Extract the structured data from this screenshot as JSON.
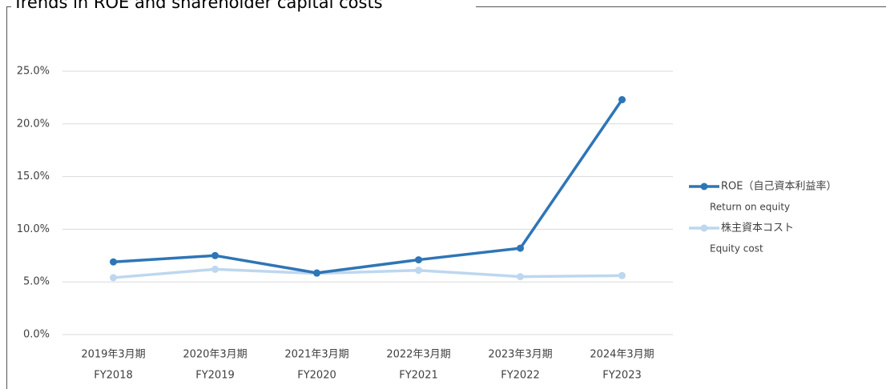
{
  "chart_data": {
    "type": "line",
    "title": "Trends in ROE and shareholder capital costs",
    "categories": [
      [
        "2019年3月期",
        "FY2018"
      ],
      [
        "2020年3月期",
        "FY2019"
      ],
      [
        "2021年3月期",
        "FY2020"
      ],
      [
        "2022年3月期",
        "FY2021"
      ],
      [
        "2023年3月期",
        "FY2022"
      ],
      [
        "2024年3月期",
        "FY2023"
      ]
    ],
    "series": [
      {
        "name": [
          "ROE（自己資本利益率）",
          "Return on equity"
        ],
        "color": "#2e75b6",
        "values": [
          6.9,
          7.5,
          5.85,
          7.1,
          8.2,
          22.3
        ]
      },
      {
        "name": [
          "株主資本コスト",
          "Equity cost"
        ],
        "color": "#bdd7ee",
        "values": [
          5.4,
          6.2,
          5.8,
          6.1,
          5.5,
          5.6
        ]
      }
    ],
    "ylim": [
      0,
      25
    ],
    "yticks": [
      {
        "value": 0,
        "label": "0.0%"
      },
      {
        "value": 5,
        "label": "5.0%"
      },
      {
        "value": 10,
        "label": "10.0%"
      },
      {
        "value": 15,
        "label": "15.0%"
      },
      {
        "value": 20,
        "label": "20.0%"
      },
      {
        "value": 25,
        "label": "25.0%"
      }
    ],
    "grid": true,
    "legend": "right"
  }
}
